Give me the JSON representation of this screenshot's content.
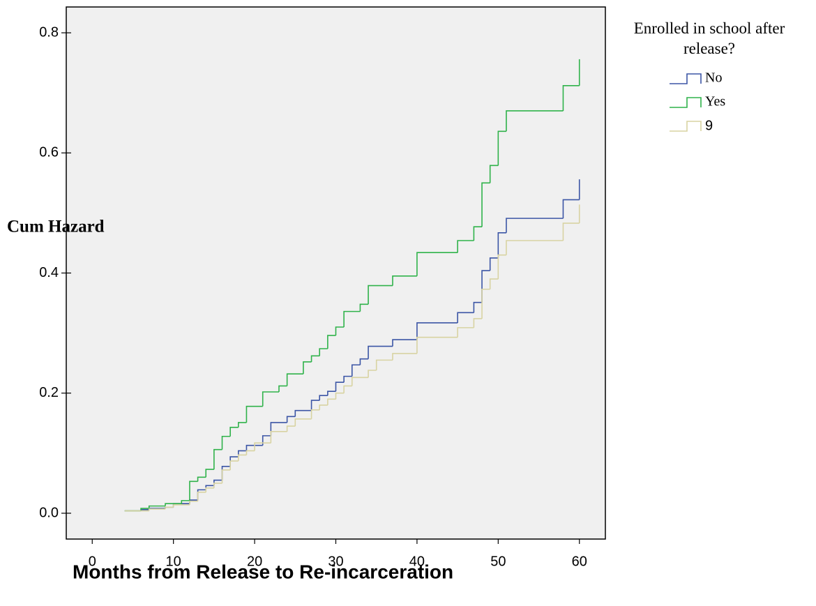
{
  "chart_data": {
    "type": "step",
    "xlabel": "Months from Release to Re-incarceration",
    "ylabel": "Cum Hazard",
    "legend_title": "Enrolled in school after release?",
    "xlim": [
      -3.2,
      63.2
    ],
    "ylim": [
      -0.043,
      0.843
    ],
    "xticks": [
      0,
      10,
      20,
      30,
      40,
      50,
      60
    ],
    "yticks": [
      {
        "value": 0,
        "label": "0.0"
      },
      {
        "value": 0.2,
        "label": "0.2"
      },
      {
        "value": 0.4,
        "label": "0.4"
      },
      {
        "value": 0.6,
        "label": "0.6"
      },
      {
        "value": 0.8,
        "label": "0.8"
      }
    ],
    "series": [
      {
        "name": "No",
        "color": "#3b55a5",
        "x": [
          4,
          6,
          7,
          9,
          10,
          12,
          13,
          14,
          15,
          16,
          17,
          18,
          19,
          21,
          22,
          24,
          25,
          27,
          28,
          29,
          30,
          31,
          32,
          33,
          34,
          37,
          40,
          45,
          47,
          48,
          49,
          50,
          51,
          58,
          60
        ],
        "values": [
          0.004,
          0.006,
          0.008,
          0.01,
          0.016,
          0.022,
          0.039,
          0.046,
          0.055,
          0.078,
          0.094,
          0.104,
          0.113,
          0.129,
          0.151,
          0.161,
          0.171,
          0.188,
          0.196,
          0.203,
          0.218,
          0.228,
          0.247,
          0.257,
          0.278,
          0.289,
          0.317,
          0.334,
          0.351,
          0.404,
          0.425,
          0.467,
          0.491,
          0.522,
          0.556
        ]
      },
      {
        "name": "Yes",
        "color": "#2fb24a",
        "x": [
          4,
          6,
          7,
          9,
          11,
          12,
          13,
          14,
          15,
          16,
          17,
          18,
          19,
          21,
          23,
          24,
          26,
          27,
          28,
          29,
          30,
          31,
          33,
          34,
          37,
          40,
          45,
          47,
          48,
          49,
          50,
          51,
          58,
          60
        ],
        "values": [
          0.004,
          0.008,
          0.012,
          0.016,
          0.021,
          0.053,
          0.06,
          0.073,
          0.106,
          0.128,
          0.143,
          0.151,
          0.178,
          0.202,
          0.212,
          0.232,
          0.252,
          0.262,
          0.274,
          0.296,
          0.31,
          0.336,
          0.348,
          0.379,
          0.395,
          0.434,
          0.454,
          0.477,
          0.55,
          0.579,
          0.636,
          0.67,
          0.712,
          0.756
        ]
      },
      {
        "name": "9",
        "color": "#d8d3a2",
        "x": [
          4,
          7,
          9,
          10,
          12,
          13,
          14,
          15,
          16,
          17,
          18,
          19,
          20,
          22,
          24,
          25,
          27,
          28,
          29,
          30,
          31,
          32,
          34,
          35,
          37,
          40,
          45,
          47,
          48,
          49,
          50,
          51,
          58,
          60
        ],
        "values": [
          0.004,
          0.007,
          0.01,
          0.014,
          0.02,
          0.035,
          0.042,
          0.05,
          0.072,
          0.087,
          0.097,
          0.104,
          0.117,
          0.136,
          0.145,
          0.157,
          0.172,
          0.18,
          0.19,
          0.2,
          0.212,
          0.226,
          0.238,
          0.255,
          0.266,
          0.293,
          0.309,
          0.324,
          0.373,
          0.39,
          0.43,
          0.454,
          0.483,
          0.514
        ]
      }
    ]
  }
}
